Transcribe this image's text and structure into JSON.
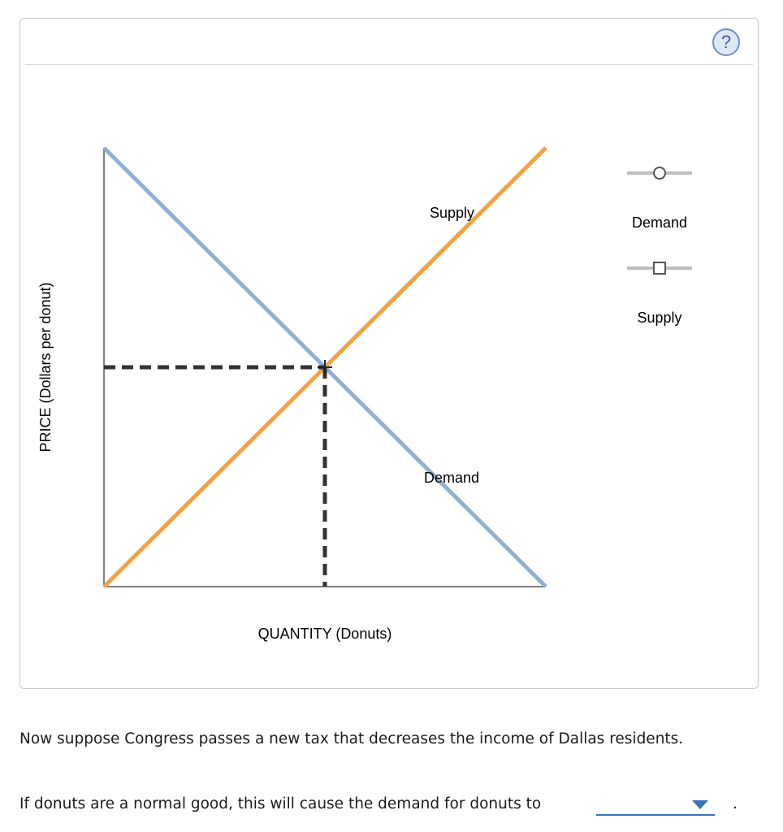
{
  "help_label": "?",
  "chart_data": {
    "type": "line",
    "xlabel": "QUANTITY (Donuts)",
    "ylabel": "PRICE (Dollars per donut)",
    "x_ticks": false,
    "y_ticks": false,
    "series": [
      {
        "name": "Demand",
        "color": "#8fb0d3",
        "points": [
          [
            0,
            1.0
          ],
          [
            1.0,
            0.0
          ]
        ]
      },
      {
        "name": "Supply",
        "color": "#f5a043",
        "points": [
          [
            0,
            0.0
          ],
          [
            1.0,
            1.0
          ]
        ]
      }
    ],
    "equilibrium": {
      "x": 0.5,
      "y": 0.5
    },
    "curve_labels": [
      "Supply",
      "Demand"
    ],
    "legend": {
      "placement": "right",
      "items": [
        {
          "label": "Demand",
          "marker": "circle"
        },
        {
          "label": "Supply",
          "marker": "square"
        }
      ]
    }
  },
  "question": {
    "statement": "Now suppose Congress passes a new tax that decreases the income of Dallas residents.",
    "prompt": "If donuts are a normal good, this will cause the demand for donuts to",
    "selected_value": "",
    "trailing": "."
  }
}
